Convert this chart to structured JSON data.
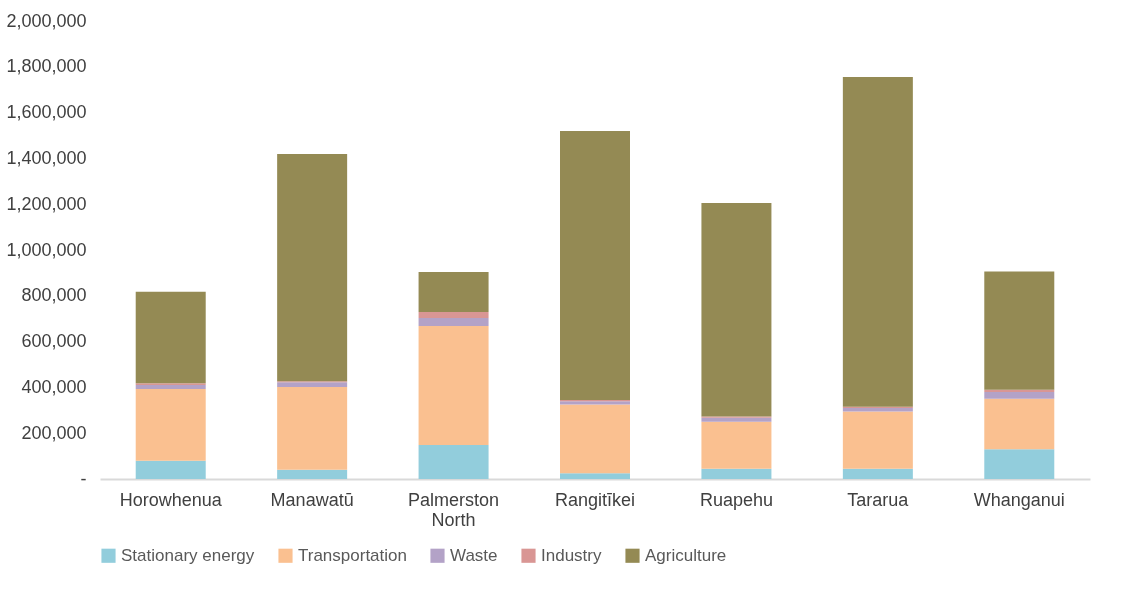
{
  "chart_data": {
    "type": "bar",
    "stacked": true,
    "categories": [
      "Horowhenua",
      "Manawatū",
      "Palmerston North",
      "Rangitīkei",
      "Ruapehu",
      "Tararua",
      "Whanganui"
    ],
    "series": [
      {
        "name": "Stationary energy",
        "color": "#92cddc",
        "values": [
          80000,
          40000,
          148000,
          25000,
          45000,
          45000,
          130000
        ]
      },
      {
        "name": "Transportation",
        "color": "#fac090",
        "values": [
          313000,
          362000,
          520000,
          300000,
          205000,
          250000,
          220000
        ]
      },
      {
        "name": "Waste",
        "color": "#b3a2c7",
        "values": [
          17000,
          20000,
          35000,
          15000,
          18000,
          15000,
          30000
        ]
      },
      {
        "name": "Industry",
        "color": "#d99694",
        "values": [
          8000,
          5000,
          26000,
          5000,
          5000,
          5000,
          10000
        ]
      },
      {
        "name": "Agriculture",
        "color": "#948a54",
        "values": [
          400000,
          992000,
          175000,
          1175000,
          932000,
          1440000,
          516000
        ]
      }
    ],
    "ylim": [
      0,
      2000000
    ],
    "yticks": [
      {
        "value": 0,
        "label": "-"
      },
      {
        "value": 200000,
        "label": "200,000"
      },
      {
        "value": 400000,
        "label": "400,000"
      },
      {
        "value": 600000,
        "label": "600,000"
      },
      {
        "value": 800000,
        "label": "800,000"
      },
      {
        "value": 1000000,
        "label": "1,000,000"
      },
      {
        "value": 1200000,
        "label": "1,200,000"
      },
      {
        "value": 1400000,
        "label": "1,400,000"
      },
      {
        "value": 1600000,
        "label": "1,600,000"
      },
      {
        "value": 1800000,
        "label": "1,800,000"
      },
      {
        "value": 2000000,
        "label": "2,000,000"
      }
    ],
    "grid": false,
    "legend": "bottom"
  }
}
